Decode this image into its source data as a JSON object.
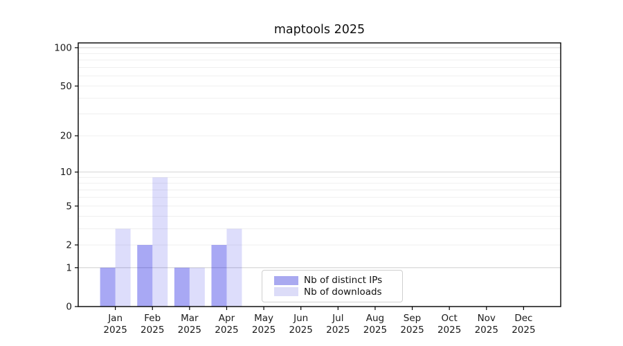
{
  "chart_data": {
    "type": "bar",
    "title": "maptools 2025",
    "year": "2025",
    "months": [
      "Jan",
      "Feb",
      "Mar",
      "Apr",
      "May",
      "Jun",
      "Jul",
      "Aug",
      "Sep",
      "Oct",
      "Nov",
      "Dec"
    ],
    "series": [
      {
        "name": "Nb of distinct IPs",
        "legend_color": "#a9a9f0",
        "bar_color": "rgba(0,0,224,0.34)",
        "values": [
          1,
          2,
          1,
          2,
          0,
          0,
          0,
          0,
          0,
          0,
          0,
          0
        ]
      },
      {
        "name": "Nb of downloads",
        "legend_color": "#dcdcf8",
        "bar_color": "rgba(0,0,224,0.135)",
        "values": [
          3,
          9,
          1,
          3,
          0,
          0,
          0,
          0,
          0,
          0,
          0,
          0
        ]
      }
    ],
    "y_axis": {
      "scale": "log10(1+y)",
      "tick_values": [
        0,
        1,
        2,
        5,
        10,
        20,
        50,
        100
      ],
      "tick_labels": [
        "0",
        "1",
        "2",
        "5",
        "10",
        "20",
        "50",
        "100"
      ],
      "major_gridlines": [
        1,
        10,
        100
      ],
      "minor_gridlines": [
        2,
        3,
        4,
        5,
        6,
        7,
        8,
        9,
        20,
        30,
        40,
        50,
        60,
        70,
        80,
        90
      ],
      "ylim": [
        0,
        109
      ]
    },
    "legend_position": "bottom-center",
    "grid": "horizontal major+minor",
    "colors": {
      "grid_major": "#d4d4d4",
      "grid_minor": "#efefef",
      "axis": "#000000",
      "text": "#1a1a1a"
    }
  }
}
